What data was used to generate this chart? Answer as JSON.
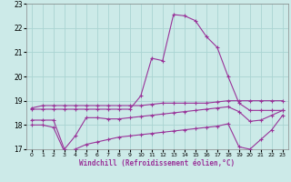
{
  "xlabel": "Windchill (Refroidissement éolien,°C)",
  "background_color": "#cceae8",
  "grid_color": "#aad4d2",
  "line_color": "#993399",
  "xlim": [
    -0.5,
    23.5
  ],
  "ylim": [
    17,
    23
  ],
  "xticks": [
    0,
    1,
    2,
    3,
    4,
    5,
    6,
    7,
    8,
    9,
    10,
    11,
    12,
    13,
    14,
    15,
    16,
    17,
    18,
    19,
    20,
    21,
    22,
    23
  ],
  "yticks": [
    17,
    18,
    19,
    20,
    21,
    22,
    23
  ],
  "series": [
    {
      "x": [
        0,
        1,
        2,
        3,
        4,
        5,
        6,
        7,
        8,
        9,
        10,
        11,
        12,
        13,
        14,
        15,
        16,
        17,
        18,
        19,
        20,
        21,
        22,
        23
      ],
      "y": [
        18.7,
        18.8,
        18.8,
        18.8,
        18.8,
        18.8,
        18.8,
        18.8,
        18.8,
        18.8,
        18.8,
        18.85,
        18.9,
        18.9,
        18.9,
        18.9,
        18.9,
        18.95,
        19.0,
        19.0,
        19.0,
        19.0,
        19.0,
        19.0
      ]
    },
    {
      "x": [
        0,
        1,
        2,
        3,
        4,
        5,
        6,
        7,
        8,
        9,
        10,
        11,
        12,
        13,
        14,
        15,
        16,
        17,
        18,
        19,
        20,
        21,
        22,
        23
      ],
      "y": [
        18.65,
        18.65,
        18.65,
        18.65,
        18.65,
        18.65,
        18.65,
        18.65,
        18.65,
        18.65,
        19.2,
        20.75,
        20.65,
        22.55,
        22.5,
        22.3,
        21.65,
        21.2,
        20.0,
        18.9,
        18.6,
        18.6,
        18.6,
        18.6
      ]
    },
    {
      "x": [
        0,
        1,
        2,
        3,
        4,
        5,
        6,
        7,
        8,
        9,
        10,
        11,
        12,
        13,
        14,
        15,
        16,
        17,
        18,
        19,
        20,
        21,
        22,
        23
      ],
      "y": [
        18.2,
        18.2,
        18.2,
        17.0,
        17.55,
        18.3,
        18.3,
        18.25,
        18.25,
        18.3,
        18.35,
        18.4,
        18.45,
        18.5,
        18.55,
        18.6,
        18.65,
        18.7,
        18.75,
        18.55,
        18.15,
        18.2,
        18.4,
        18.6
      ]
    },
    {
      "x": [
        0,
        1,
        2,
        3,
        4,
        5,
        6,
        7,
        8,
        9,
        10,
        11,
        12,
        13,
        14,
        15,
        16,
        17,
        18,
        19,
        20,
        21,
        22,
        23
      ],
      "y": [
        18.0,
        18.0,
        17.9,
        16.9,
        17.0,
        17.2,
        17.3,
        17.4,
        17.5,
        17.55,
        17.6,
        17.65,
        17.7,
        17.75,
        17.8,
        17.85,
        17.9,
        17.95,
        18.05,
        17.1,
        17.0,
        17.4,
        17.8,
        18.4
      ]
    }
  ]
}
